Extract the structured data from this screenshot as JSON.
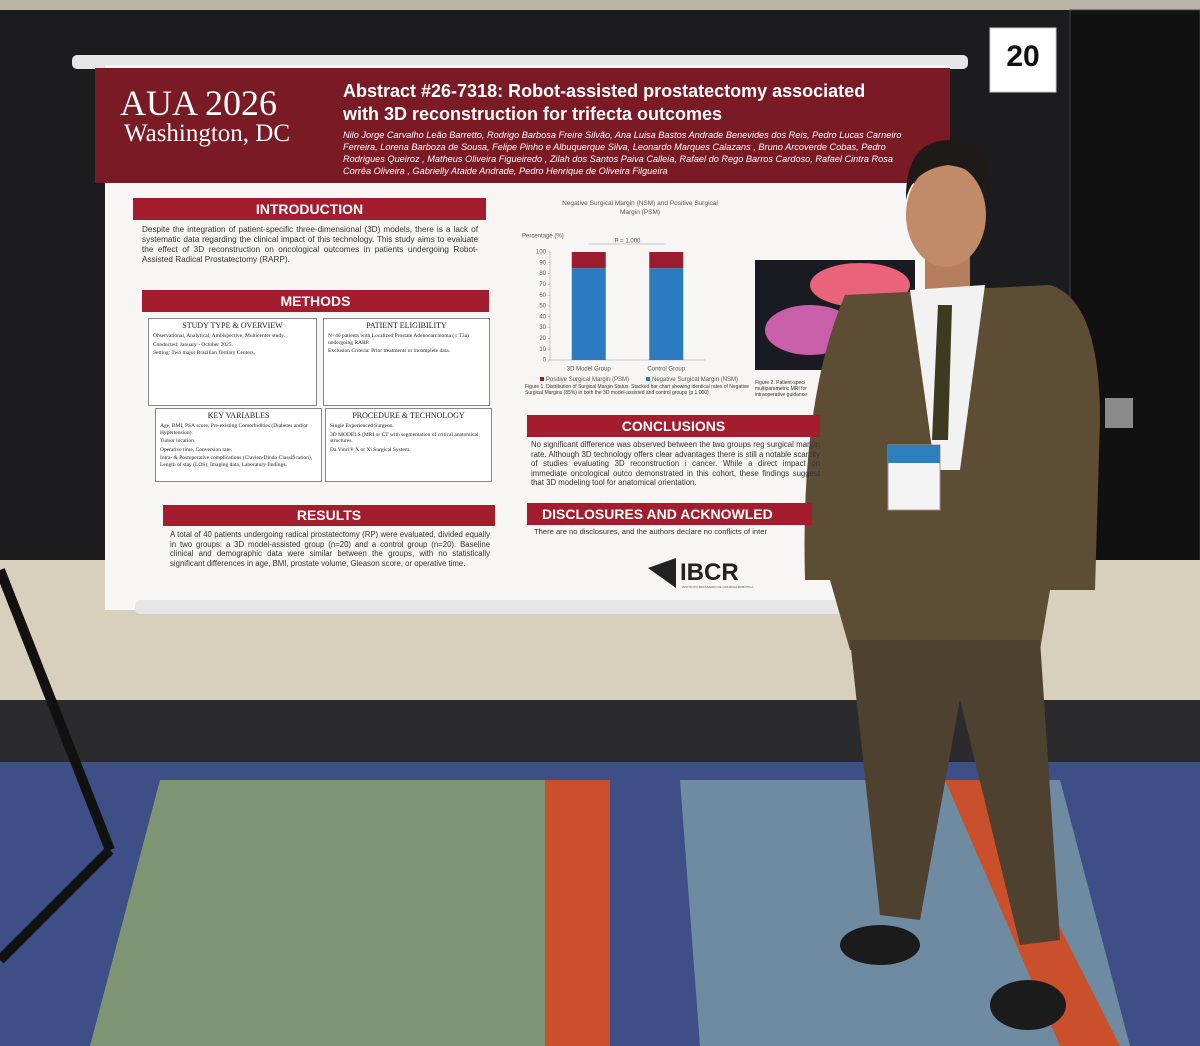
{
  "booth_number": "20",
  "poster": {
    "header": {
      "event": "AUA 2026",
      "city": "Washington, DC",
      "title": "Abstract #26-7318: Robot-assisted prostatectomy associated with 3D reconstruction for trifecta outcomes",
      "authors": "Nilo Jorge Carvalho Leão Barretto, Rodrigo Barbosa Freire Silvão, Ana Luisa Bastos Andrade Benevides dos Reis, Pedro Lucas Carneiro Ferreira, Lorena Barboza de Sousa, Felipe Pinho e Albuquerque Silva, Leonardo Marques Calazans , Bruno Arcoverde Cobas, Pedro Rodrigues Queiroz , Matheus Oliveira Figueiredo , Zilah dos Santos Paiva Calleia, Rafael do Rego Barros Cardoso, Rafael Cintra Rosa Corrêa Oliveira , Gabrielly Ataide Andrade, Pedro Henrique de Oliveira Filgueira"
    },
    "introduction": {
      "heading": "INTRODUCTION",
      "text": "Despite the integration of patient-specific three-dimensional (3D) models, there is a lack of systematic data regarding the clinical impact of this technology. This study aims to evaluate the effect of 3D reconstruction on oncological outcomes in patients undergoing Robot-Assisted Radical Prostatectomy (RARP)."
    },
    "methods": {
      "heading": "METHODS",
      "boxes": [
        {
          "heading": "STUDY TYPE & OVERVIEW",
          "items": [
            "Observational, Analytical, Ambispective, Multicenter study.",
            "Conducted: January - October 2025.",
            "Setting: Two major Brazilian Tertiary Centers."
          ]
        },
        {
          "heading": "PATIENT ELIGIBILITY",
          "items": [
            "N=40 patients with Localized Prostate Adenocarcinoma (≤ T3a) undergoing RARP.",
            "Exclusion Criteria: Prior treatments or incomplete data."
          ]
        },
        {
          "heading": "KEY VARIABLES",
          "items": [
            "Age, BMI, PSA score, Pre-existing Comorbidities (Diabetes and/or Hypertension).",
            "Tumor location.",
            "Operative time, Conversion rate.",
            "Intra- & Postoperative complications (Clavien-Dindo Classification), Length of stay (LOS), Imaging data, Laboratory findings."
          ]
        },
        {
          "heading": "PROCEDURE & TECHNOLOGY",
          "items": [
            "Single Experienced Surgeon.",
            "3D MODELS (MRI or CT with segmentation of critical anatomical structures.",
            "Da Vinci® X or Xi Surgical System."
          ]
        }
      ]
    },
    "results": {
      "heading": "RESULTS",
      "text": "A total of 40 patients undergoing radical prostatectomy (RP) were evaluated, divided equally in two groups: a 3D model-assisted group (n=20) and a control group (n=20). Baseline clinical and demographic data were similar between the groups, with no statistically significant differences in age, BMI, prostate volume, Gleason score, or operative time."
    },
    "figure1": {
      "chart": {
        "type": "bar",
        "title": "Negative Surgical Margin (NSM) and Positive Surgical Margin (PSM)",
        "y_label": "Percentage (%)",
        "annotation": "P = 1.000",
        "categories": [
          "3D Model Group",
          "Control Group"
        ],
        "stacked": true,
        "series": [
          {
            "name": "Negative Surgical Margin (NSM)",
            "color": "#2a7bbf",
            "values": [
              85,
              85
            ]
          },
          {
            "name": "Positive Surgical Margin (PSM)",
            "color": "#9b1c2c",
            "values": [
              15,
              15
            ]
          }
        ],
        "ylim": [
          0,
          100
        ],
        "yticks": [
          0,
          10,
          20,
          30,
          40,
          50,
          60,
          70,
          80,
          90,
          100
        ]
      },
      "caption": "Figure 1. Distribution of Surgical Margin Status. Stacked bar chart showing identical rates of Negative Surgical Margins (85%) in both the 3D model-assisted and control groups (p 1.000)"
    },
    "figure2": {
      "caption": "Figure 2. Patient-speci multiparametric MRI for intraoperative guidance"
    },
    "conclusions": {
      "heading": "CONCLUSIONS",
      "text": "No significant difference was observed between the two groups reg surgical margin rate. Although 3D technology offers clear advantages there is still a notable scarcity of studies evaluating 3D reconstruction i cancer. While a direct impact on immediate oncological outco demonstrated in this cohort, these findings suggest that 3D modeling tool for anatomical orientation."
    },
    "disclosures": {
      "heading": "DISCLOSURES AND ACKNOWLED",
      "text": "There are no disclosures, and the authors declare no conflicts of inter"
    },
    "logo": {
      "name": "IBCR",
      "subtitle": "INSTITUTO BRASILEIRO DE CIRURGIA ROBÓTICA"
    }
  }
}
